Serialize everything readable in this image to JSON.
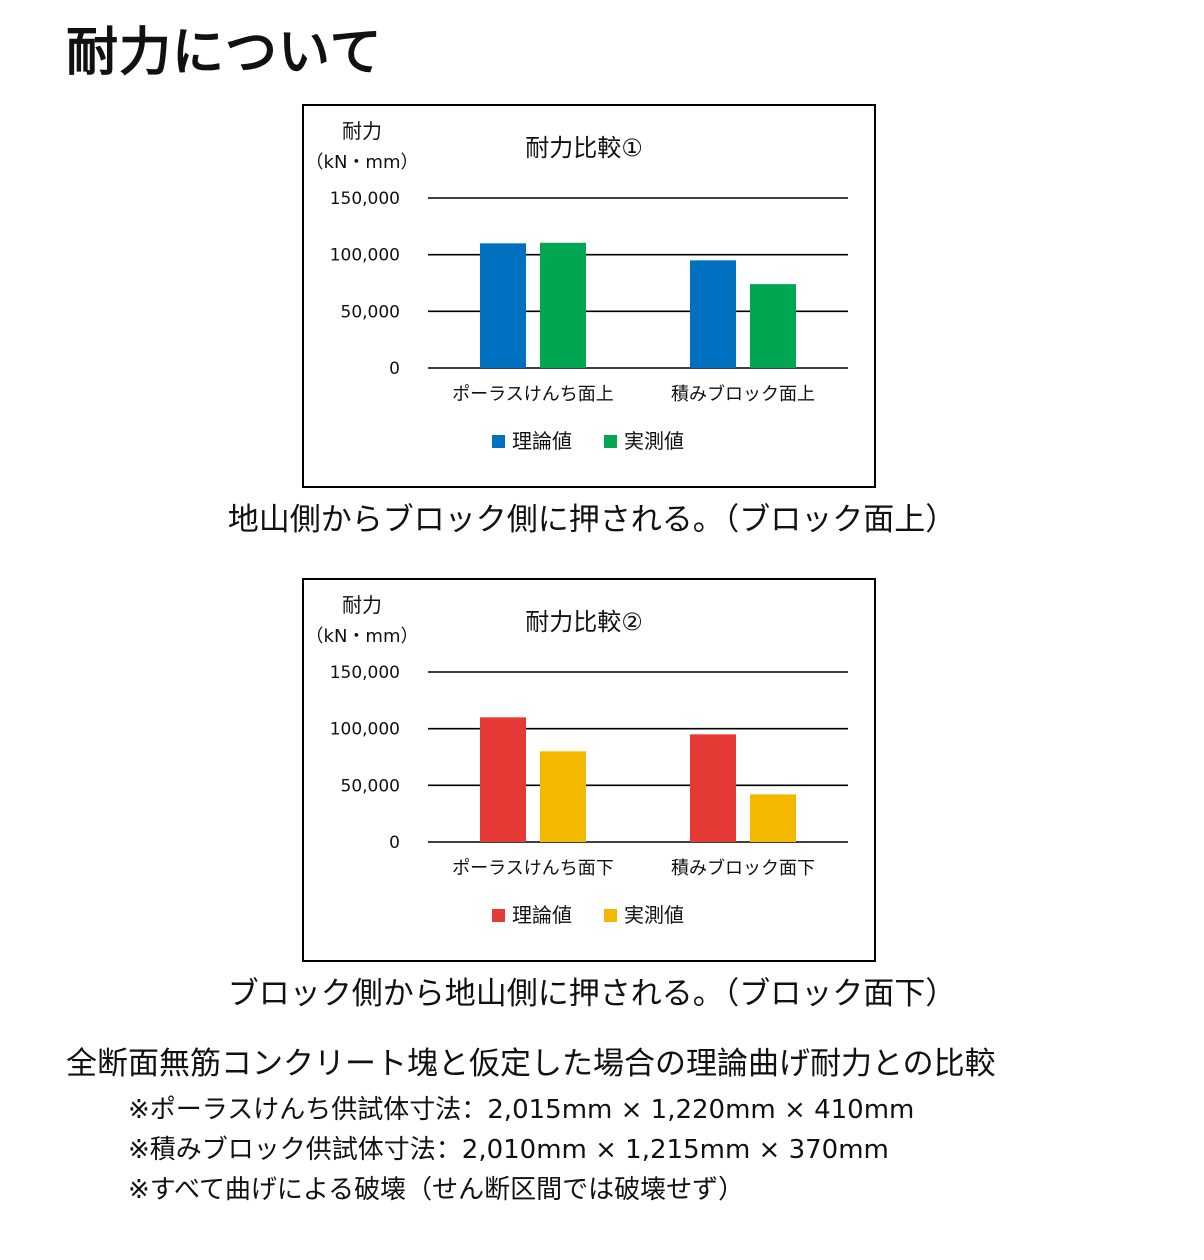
{
  "page": {
    "title": "耐力について",
    "conclusion": "全断面無筋コンクリート塊と仮定した場合の理論曲げ耐力との比較",
    "notes": [
      "※ポーラスけんち供試体寸法：2,015mm × 1,220mm × 410mm",
      "※積みブロック供試体寸法：2,010mm × 1,215mm × 370mm",
      "※すべて曲げによる破壊（せん断区間では破壊せず）"
    ]
  },
  "charts": [
    {
      "caption": "地山側からブロック側に押される。（ブロック面上）"
    },
    {
      "caption": "ブロック側から地山側に押される。（ブロック面下）"
    }
  ],
  "chart_data": [
    {
      "type": "bar",
      "title": "耐力比較①",
      "ylabel": "耐力",
      "yunit": "（kN・mm）",
      "categories": [
        "ポーラスけんち面上",
        "積みブロック面上"
      ],
      "series": [
        {
          "name": "理論値",
          "color": "#0070C0",
          "values": [
            110000,
            95000
          ]
        },
        {
          "name": "実測値",
          "color": "#00A651",
          "values": [
            110500,
            74000
          ]
        }
      ],
      "ylim": [
        0,
        150000
      ],
      "yticks": [
        0,
        50000,
        100000,
        150000
      ],
      "ytick_labels": [
        "0",
        "50,000",
        "100,000",
        "150,000"
      ],
      "grid": true,
      "legend": "bottom"
    },
    {
      "type": "bar",
      "title": "耐力比較②",
      "ylabel": "耐力",
      "yunit": "（kN・mm）",
      "categories": [
        "ポーラスけんち面下",
        "積みブロック面下"
      ],
      "series": [
        {
          "name": "理論値",
          "color": "#E53935",
          "values": [
            110000,
            95000
          ]
        },
        {
          "name": "実測値",
          "color": "#F5B800",
          "values": [
            80000,
            42000
          ]
        }
      ],
      "ylim": [
        0,
        150000
      ],
      "yticks": [
        0,
        50000,
        100000,
        150000
      ],
      "ytick_labels": [
        "0",
        "50,000",
        "100,000",
        "150,000"
      ],
      "grid": true,
      "legend": "bottom"
    }
  ]
}
